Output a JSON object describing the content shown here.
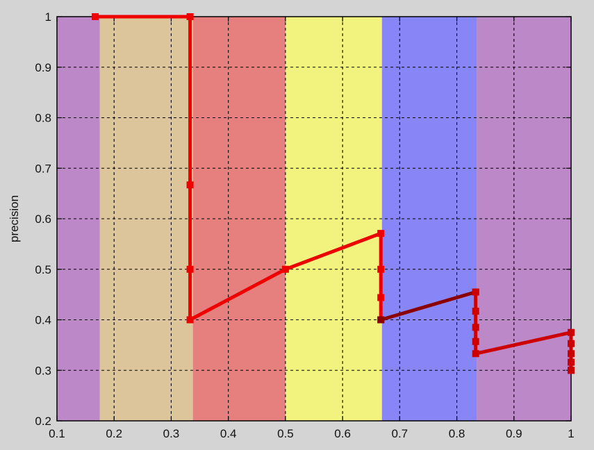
{
  "chart_data": {
    "type": "line",
    "title": "",
    "xlabel": "",
    "ylabel": "precision",
    "xlim": [
      0.1,
      1.0
    ],
    "ylim": [
      0.2,
      1.0
    ],
    "grid": true,
    "grid_style": "dashed",
    "xticks": [
      0.1,
      0.2,
      0.3,
      0.4,
      0.5,
      0.6,
      0.7,
      0.8,
      0.9,
      1.0
    ],
    "xtick_labels": [
      "0.1",
      "0.2",
      "0.3",
      "0.4",
      "0.5",
      "0.6",
      "0.7",
      "0.8",
      "0.9",
      "1"
    ],
    "yticks": [
      0.2,
      0.3,
      0.4,
      0.5,
      0.6,
      0.7,
      0.8,
      0.9,
      1.0
    ],
    "ytick_labels": [
      "0.2",
      "0.3",
      "0.4",
      "0.5",
      "0.6",
      "0.7",
      "0.8",
      "0.9",
      "1"
    ],
    "background_bands": [
      {
        "x0": 0.1,
        "x1": 0.175,
        "color": "#bd88c8"
      },
      {
        "x0": 0.175,
        "x1": 0.338,
        "color": "#dcc49b"
      },
      {
        "x0": 0.338,
        "x1": 0.5,
        "color": "#e5807e"
      },
      {
        "x0": 0.5,
        "x1": 0.669,
        "color": "#f2f37f"
      },
      {
        "x0": 0.669,
        "x1": 0.835,
        "color": "#8886f6"
      },
      {
        "x0": 0.835,
        "x1": 1.0,
        "color": "#bd88c8"
      }
    ],
    "series": [
      {
        "color": "#ee0000",
        "x": [
          0.167,
          0.333,
          0.333,
          0.333,
          0.333,
          0.5,
          0.667,
          0.667,
          0.667,
          0.667
        ],
        "y": [
          1.0,
          1.0,
          0.667,
          0.5,
          0.4,
          0.5,
          0.571,
          0.5,
          0.444,
          0.4
        ]
      },
      {
        "color": "#8b0000",
        "x": [
          0.667,
          0.833
        ],
        "y": [
          0.4,
          0.455
        ]
      },
      {
        "color": "#cc0000",
        "x": [
          0.833,
          0.833,
          0.833,
          0.833,
          0.833,
          1.0,
          1.0,
          1.0,
          1.0,
          1.0,
          1.0
        ],
        "y": [
          0.455,
          0.417,
          0.385,
          0.357,
          0.333,
          0.375,
          0.353,
          0.333,
          0.316,
          0.3,
          0.3
        ]
      }
    ]
  }
}
